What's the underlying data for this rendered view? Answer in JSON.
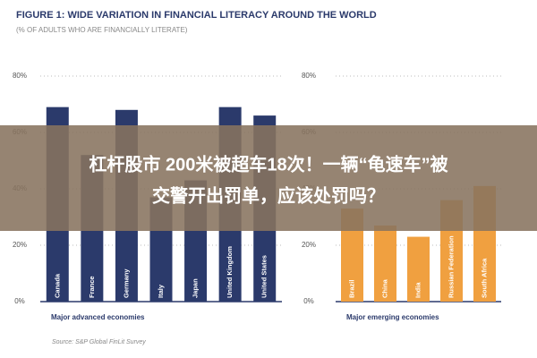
{
  "header": {
    "title": "FIGURE 1: WIDE VARIATION IN FINANCIAL LITERACY AROUND THE WORLD",
    "subtitle": "(% OF ADULTS WHO ARE FINANCIALLY LITERATE)"
  },
  "chart_data": [
    {
      "type": "bar",
      "x_label": "Major advanced economies",
      "color": "#2b3a6b",
      "categories": [
        "Canada",
        "France",
        "Germany",
        "Italy",
        "Japan",
        "United Kingdom",
        "United States"
      ],
      "values": [
        69,
        52,
        68,
        37,
        43,
        69,
        66
      ],
      "ylim": [
        0,
        80
      ],
      "yticks": [
        {
          "value": 0,
          "label": "0%"
        },
        {
          "value": 20,
          "label": "20%"
        },
        {
          "value": 40,
          "label": "40%"
        },
        {
          "value": 60,
          "label": "60%"
        },
        {
          "value": 80,
          "label": "80%"
        }
      ],
      "grid": true
    },
    {
      "type": "bar",
      "x_label": "Major emerging economies",
      "color": "#f0a040",
      "categories": [
        "Brazil",
        "China",
        "India",
        "Russian Federation",
        "South Africa"
      ],
      "values": [
        33,
        27,
        23,
        36,
        41
      ],
      "ylim": [
        0,
        80
      ],
      "yticks": [
        {
          "value": 0,
          "label": "0%"
        },
        {
          "value": 20,
          "label": "20%"
        },
        {
          "value": 40,
          "label": "40%"
        },
        {
          "value": 60,
          "label": "60%"
        },
        {
          "value": 80,
          "label": "80%"
        }
      ],
      "grid": true
    }
  ],
  "source": "Source: S&P Global FinLit Survey",
  "banner": [
    "杠杆股市 200米被超车18次！一辆“龟速车”被",
    "交警开出罚单，应该处罚吗？"
  ]
}
